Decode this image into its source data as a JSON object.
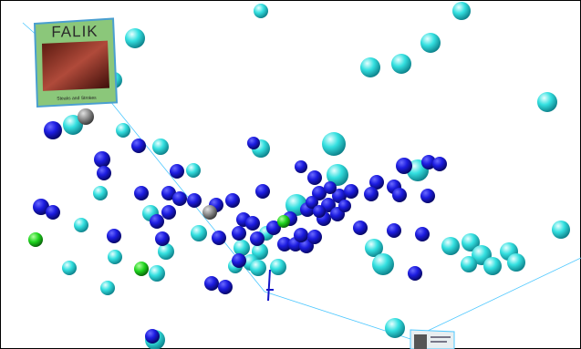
{
  "album": {
    "title": "FALIK",
    "subtitle": "Steaks and Strokes"
  }
}
